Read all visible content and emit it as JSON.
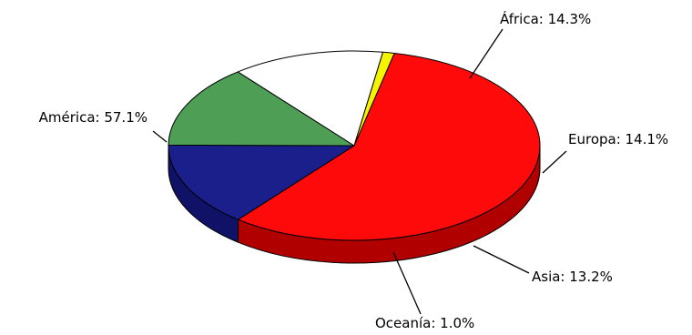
{
  "chart_data": {
    "type": "pie",
    "style": "3d",
    "slices": [
      {
        "label": "América",
        "value": 57.1,
        "value_text": "57.1%",
        "color": "#ff0a0a",
        "side_color": "#b00000"
      },
      {
        "label": "África",
        "value": 14.3,
        "value_text": "14.3%",
        "color": "#1a1f8c",
        "side_color": "#0f1266"
      },
      {
        "label": "Europa",
        "value": 14.1,
        "value_text": "14.1%",
        "color": "#4e9e55",
        "side_color": "#2f5e32"
      },
      {
        "label": "Asia",
        "value": 13.2,
        "value_text": "13.2%",
        "color": "#ffffff",
        "side_color": "#999999"
      },
      {
        "label": "Oceanía",
        "value": 1.0,
        "value_text": "1.0%",
        "color": "#f4f400",
        "side_color": "#bba800"
      }
    ],
    "legend": "none",
    "label_format": "{label}: {value_text}"
  }
}
